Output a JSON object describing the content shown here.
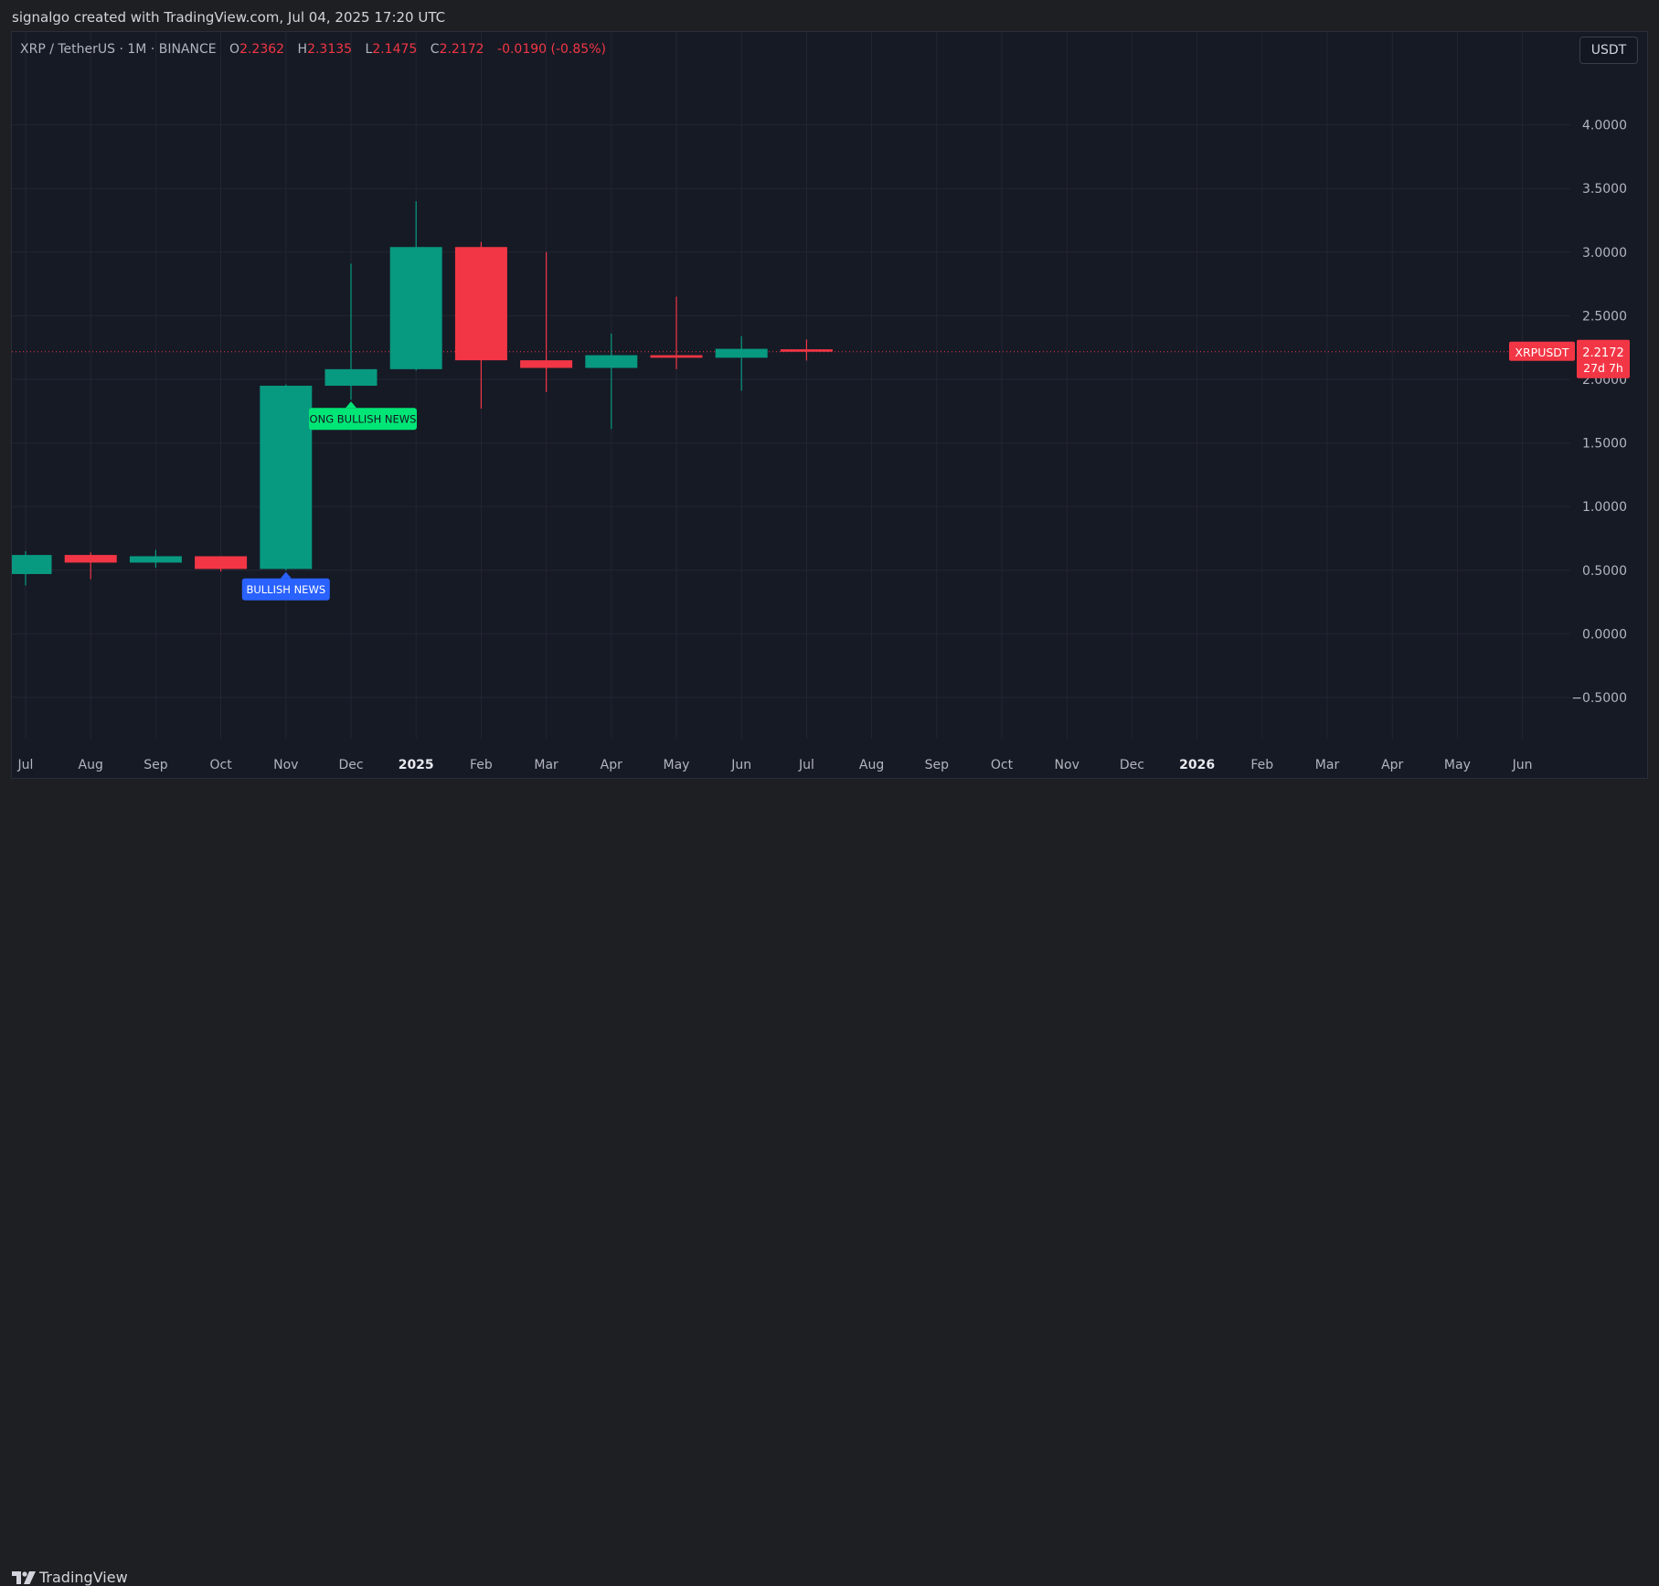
{
  "header": {
    "attribution": "signalgo created with TradingView.com, Jul 04, 2025 17:20 UTC"
  },
  "legend": {
    "symbol": "XRP / TetherUS · 1M · BINANCE",
    "o_label": "O",
    "o_value": "2.2362",
    "h_label": "H",
    "h_value": "2.3135",
    "l_label": "L",
    "l_value": "2.1475",
    "c_label": "C",
    "c_value": "2.2172",
    "change": "-0.0190 (-0.85%)"
  },
  "currency_button": "USDT",
  "footer": {
    "logo_text": "TradingView"
  },
  "colors": {
    "up": "#089981",
    "down": "#f23645",
    "background": "#161a25",
    "grid": "#232632",
    "text": "#b2b5be",
    "signal_buy": "#2962ff",
    "signal_strong": "#00e676"
  },
  "chart_data": {
    "type": "candlestick",
    "symbol": "XRP / TetherUS",
    "interval": "1M",
    "exchange": "BINANCE",
    "ylim": [
      -0.85,
      4.5
    ],
    "y_ticks": [
      "4.0000",
      "3.5000",
      "3.0000",
      "2.5000",
      "2.0000",
      "1.5000",
      "1.0000",
      "0.5000",
      "0.0000",
      "−0.5000"
    ],
    "y_tick_values": [
      4.0,
      3.5,
      3.0,
      2.5,
      2.0,
      1.5,
      1.0,
      0.5,
      0.0,
      -0.5
    ],
    "x_ticks": [
      "Jul",
      "Aug",
      "Sep",
      "Oct",
      "Nov",
      "Dec",
      "2025",
      "Feb",
      "Mar",
      "Apr",
      "May",
      "Jun",
      "Jul",
      "Aug",
      "Sep",
      "Oct",
      "Nov",
      "Dec",
      "2026",
      "Feb",
      "Mar",
      "Apr",
      "May",
      "Jun"
    ],
    "bold_ticks": [
      "2025",
      "2026"
    ],
    "candles": [
      {
        "month": "2024-07",
        "open": 0.47,
        "high": 0.65,
        "low": 0.38,
        "close": 0.62
      },
      {
        "month": "2024-08",
        "open": 0.62,
        "high": 0.64,
        "low": 0.43,
        "close": 0.56
      },
      {
        "month": "2024-09",
        "open": 0.56,
        "high": 0.66,
        "low": 0.52,
        "close": 0.61
      },
      {
        "month": "2024-10",
        "open": 0.61,
        "high": 0.61,
        "low": 0.49,
        "close": 0.51
      },
      {
        "month": "2024-11",
        "open": 0.51,
        "high": 1.96,
        "low": 0.5,
        "close": 1.95
      },
      {
        "month": "2024-12",
        "open": 1.95,
        "high": 2.91,
        "low": 1.84,
        "close": 2.08
      },
      {
        "month": "2025-01",
        "open": 2.08,
        "high": 3.4,
        "low": 2.07,
        "close": 3.04
      },
      {
        "month": "2025-02",
        "open": 3.04,
        "high": 3.08,
        "low": 1.77,
        "close": 2.15
      },
      {
        "month": "2025-03",
        "open": 2.15,
        "high": 3.0,
        "low": 1.9,
        "close": 2.09
      },
      {
        "month": "2025-04",
        "open": 2.09,
        "high": 2.36,
        "low": 1.61,
        "close": 2.19
      },
      {
        "month": "2025-05",
        "open": 2.19,
        "high": 2.65,
        "low": 2.08,
        "close": 2.17
      },
      {
        "month": "2025-06",
        "open": 2.17,
        "high": 2.34,
        "low": 1.91,
        "close": 2.24
      },
      {
        "month": "2025-07",
        "open": 2.2362,
        "high": 2.3135,
        "low": 2.1475,
        "close": 2.2172
      }
    ],
    "signals": [
      {
        "candle": 4,
        "text": "BULLISH NEWS",
        "type": "buy"
      },
      {
        "candle": 5,
        "text": "ONG BULLISH NEWS",
        "type": "strong"
      }
    ],
    "last_price": {
      "symbol": "XRPUSDT",
      "value": "2.2172",
      "countdown": "27d 7h",
      "price": 2.2172
    }
  }
}
